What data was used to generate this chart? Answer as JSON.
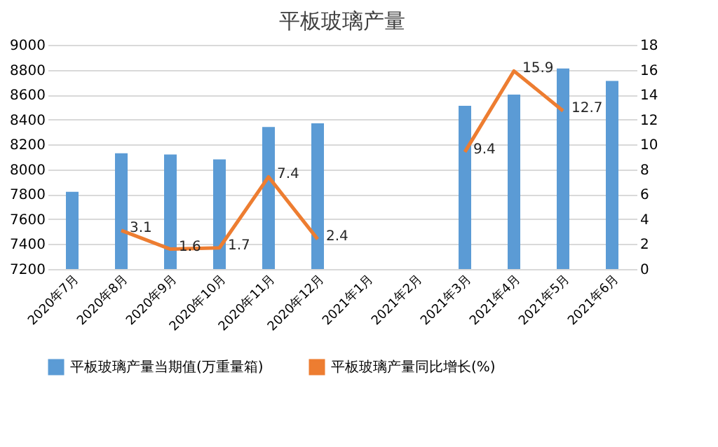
{
  "chart_data": {
    "type": "bar",
    "title": "平板玻璃产量",
    "categories": [
      "2020年7月",
      "2020年8月",
      "2020年9月",
      "2020年10月",
      "2020年11月",
      "2020年12月",
      "2021年1月",
      "2021年2月",
      "2021年3月",
      "2021年4月",
      "2021年5月",
      "2021年6月"
    ],
    "series": [
      {
        "name": "平板玻璃产量当期值(万重量箱)",
        "color": "#5b9bd5",
        "values": [
          7820,
          8130,
          8120,
          8080,
          8340,
          8370,
          null,
          null,
          8510,
          8600,
          8810,
          8710
        ]
      },
      {
        "name": "平板玻璃产量同比增长(%)",
        "color": "#ed7d31",
        "type": "line",
        "axis": "y2",
        "values": [
          null,
          3.1,
          1.6,
          1.7,
          7.4,
          2.4,
          null,
          null,
          9.4,
          15.9,
          12.7,
          null
        ],
        "value_labels": [
          null,
          "3.1",
          "1.6",
          "1.7",
          "7.4",
          "2.4",
          null,
          null,
          "9.4",
          "15.9",
          "12.7",
          null
        ]
      }
    ],
    "ylim": [
      7200,
      9000
    ],
    "yticks": [
      7200,
      7400,
      7600,
      7800,
      8000,
      8200,
      8400,
      8600,
      8800,
      9000
    ],
    "y2lim": [
      0,
      18
    ],
    "y2ticks": [
      0,
      2,
      4,
      6,
      8,
      10,
      12,
      14,
      16,
      18
    ],
    "grid": "y",
    "legend": "bottom"
  }
}
